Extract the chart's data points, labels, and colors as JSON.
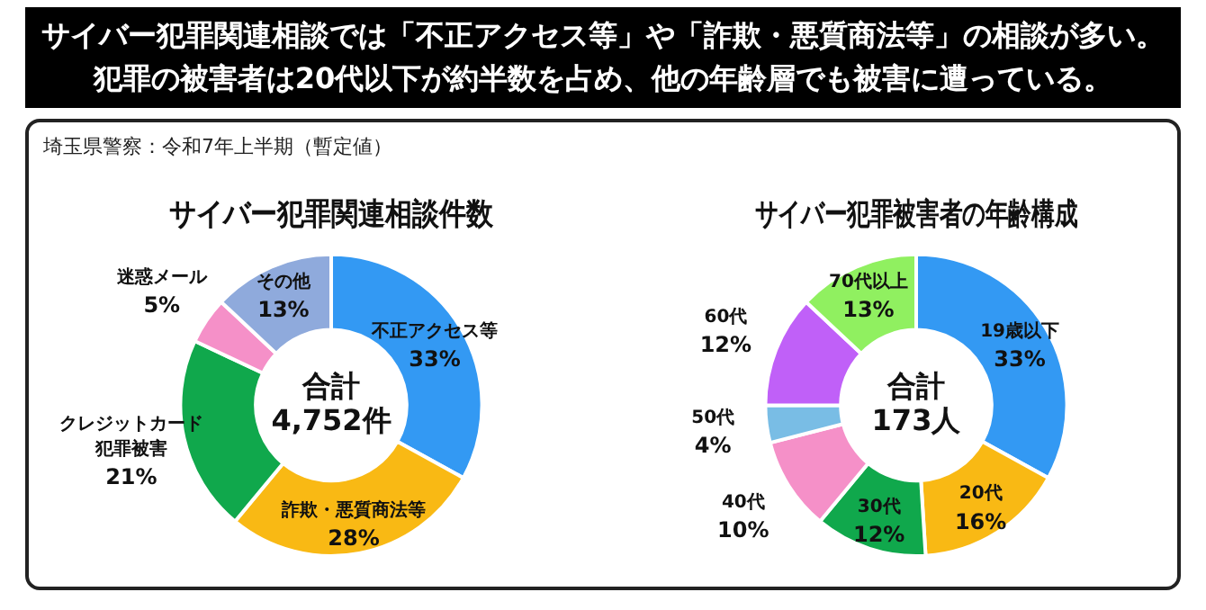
{
  "chart_data": [
    {
      "type": "donut",
      "title": "サイバー犯罪関連相談件数",
      "categories": [
        "不正アクセス等",
        "詐欺・悪質商法等",
        "クレジットカード犯罪被害",
        "迷惑メール",
        "その他"
      ],
      "values": [
        33,
        28,
        21,
        5,
        13
      ],
      "colors": [
        "#3399f3",
        "#f9b914",
        "#10a84c",
        "#f590c8",
        "#8faadc"
      ],
      "value_labels": [
        "33%",
        "28%",
        "21%",
        "5%",
        "13%"
      ],
      "legend": false,
      "annotations": [
        "サイバー犯罪関連相談では「不正アクセス等」や「詐欺・悪質商法等」の相談が多い。",
        "犯罪の被害者は20代以下が約半数を占め、他の年齢層でも被害に遭っている。",
        "埼玉県警察：令和7年上半期（暫定値）",
        "合計\n4,752件"
      ]
    },
    {
      "type": "donut",
      "title": "サイバー犯罪被害者の年齢構成",
      "categories": [
        "19歳以下",
        "20代",
        "30代",
        "40代",
        "50代",
        "60代",
        "70代以上"
      ],
      "values": [
        33,
        16,
        12,
        10,
        4,
        12,
        13
      ],
      "colors": [
        "#3399f3",
        "#f9b914",
        "#10a84c",
        "#f590c8",
        "#79bde5",
        "#c060f8",
        "#90f060"
      ],
      "value_labels": [
        "33%",
        "16%",
        "12%",
        "10%",
        "4%",
        "12%",
        "13%"
      ],
      "legend": false,
      "annotations": [
        "合計\n173人"
      ]
    }
  ]
}
